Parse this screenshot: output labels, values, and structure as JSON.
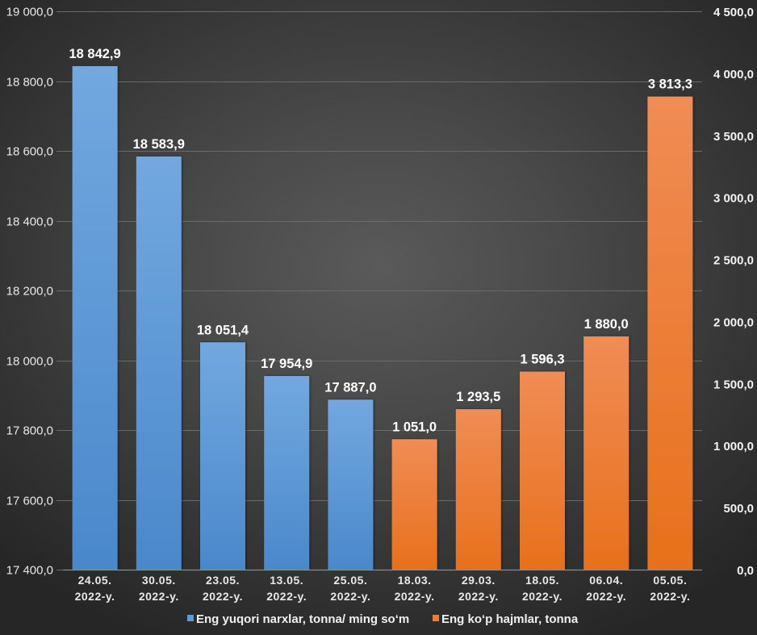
{
  "chart_data": {
    "type": "bar",
    "title": "",
    "xlabel": "",
    "categories": [
      [
        "24.05.",
        "2022-y."
      ],
      [
        "30.05.",
        "2022-y."
      ],
      [
        "23.05.",
        "2022-y."
      ],
      [
        "13.05.",
        "2022-y."
      ],
      [
        "25.05.",
        "2022-y."
      ],
      [
        "18.03.",
        "2022-y."
      ],
      [
        "29.03.",
        "2022-y."
      ],
      [
        "18.05.",
        "2022-y."
      ],
      [
        "06.04.",
        "2022-y."
      ],
      [
        "05.05.",
        "2022-y."
      ]
    ],
    "series": [
      {
        "name": "Eng yuqori narxlar, tonna/ ming so‘m",
        "axis": "left",
        "color": "#5b9bd5",
        "color_light": "#72a8df",
        "color_dark": "#4a88cc",
        "category_indices": [
          0,
          1,
          2,
          3,
          4
        ],
        "values": [
          18842.9,
          18583.9,
          18051.4,
          17954.9,
          17887.0
        ],
        "labels": [
          "18 842,9",
          "18 583,9",
          "18 051,4",
          "17 954,9",
          "17 887,0"
        ]
      },
      {
        "name": "Eng ko‘p hajmlar, tonna",
        "axis": "right",
        "color": "#ed7d31",
        "color_light": "#f08c55",
        "color_dark": "#e8701b",
        "category_indices": [
          5,
          6,
          7,
          8,
          9
        ],
        "values": [
          1051.0,
          1293.5,
          1596.3,
          1880.0,
          3813.3
        ],
        "labels": [
          "1 051,0",
          "1 293,5",
          "1 596,3",
          "1 880,0",
          "3 813,3"
        ]
      }
    ],
    "y_left": {
      "ylim": [
        17400,
        19000
      ],
      "ticks": [
        17400,
        17600,
        17800,
        18000,
        18200,
        18400,
        18600,
        18800,
        19000
      ],
      "tick_labels": [
        "17 400,0",
        "17 600,0",
        "17 800,0",
        "18 000,0",
        "18 200,0",
        "18 400,0",
        "18 600,0",
        "18 800,0",
        "19 000,0"
      ]
    },
    "y_right": {
      "ylim": [
        0,
        4500
      ],
      "ticks": [
        0,
        500,
        1000,
        1500,
        2000,
        2500,
        3000,
        3500,
        4000,
        4500
      ],
      "tick_labels": [
        "0,0",
        "500,0",
        "1 000,0",
        "1 500,0",
        "2 000,0",
        "2 500,0",
        "3 000,0",
        "3 500,0",
        "4 000,0",
        "4 500,0"
      ]
    },
    "grid": true,
    "legend_position": "bottom"
  }
}
